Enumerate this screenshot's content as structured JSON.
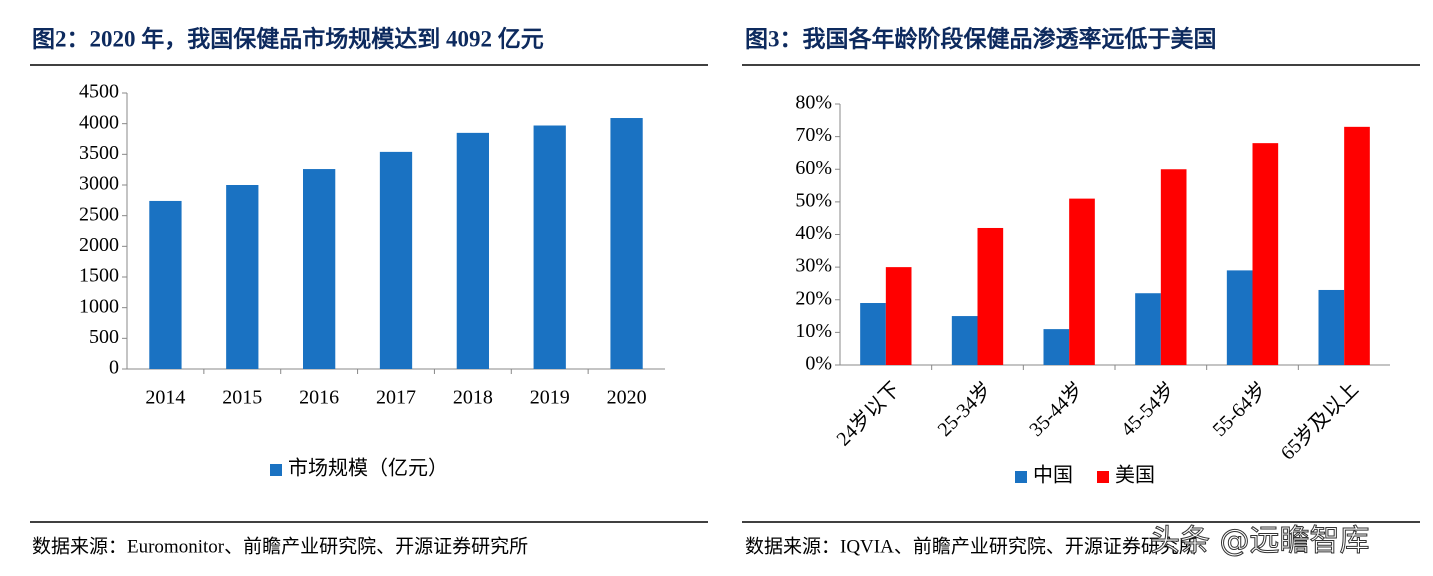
{
  "chart_data": [
    {
      "type": "bar",
      "title": "图2：2020 年，我国保健品市场规模达到 4092 亿元",
      "categories": [
        "2014",
        "2015",
        "2016",
        "2017",
        "2018",
        "2019",
        "2020"
      ],
      "series": [
        {
          "name": "市场规模（亿元）",
          "color": "#1a72c2",
          "values": [
            2740,
            3000,
            3260,
            3540,
            3850,
            3970,
            4092
          ]
        }
      ],
      "ylim": [
        0,
        4500
      ],
      "yticks": [
        0,
        500,
        1000,
        1500,
        2000,
        2500,
        3000,
        3500,
        4000,
        4500
      ],
      "legend": "bottom",
      "source": "数据来源：Euromonitor、前瞻产业研究院、开源证券研究所"
    },
    {
      "type": "bar",
      "title": "图3：我国各年龄阶段保健品渗透率远低于美国",
      "categories": [
        "24岁以下",
        "25-34岁",
        "35-44岁",
        "45-54岁",
        "55-64岁",
        "65岁及以上"
      ],
      "series": [
        {
          "name": "中国",
          "color": "#1a72c2",
          "values": [
            19,
            15,
            11,
            22,
            29,
            23
          ]
        },
        {
          "name": "美国",
          "color": "#ff0000",
          "values": [
            30,
            42,
            51,
            60,
            68,
            73
          ]
        }
      ],
      "ylim": [
        0,
        80
      ],
      "yticks": [
        {
          "value": 0,
          "label": "0%"
        },
        {
          "value": 10,
          "label": "10%"
        },
        {
          "value": 20,
          "label": "20%"
        },
        {
          "value": 30,
          "label": "30%"
        },
        {
          "value": 40,
          "label": "40%"
        },
        {
          "value": 50,
          "label": "50%"
        },
        {
          "value": 60,
          "label": "60%"
        },
        {
          "value": 70,
          "label": "70%"
        },
        {
          "value": 80,
          "label": "80%"
        }
      ],
      "legend": "bottom",
      "source": "数据来源：IQVIA、前瞻产业研究院、开源证券研究所"
    }
  ],
  "watermark": "头条 @远瞻智库"
}
